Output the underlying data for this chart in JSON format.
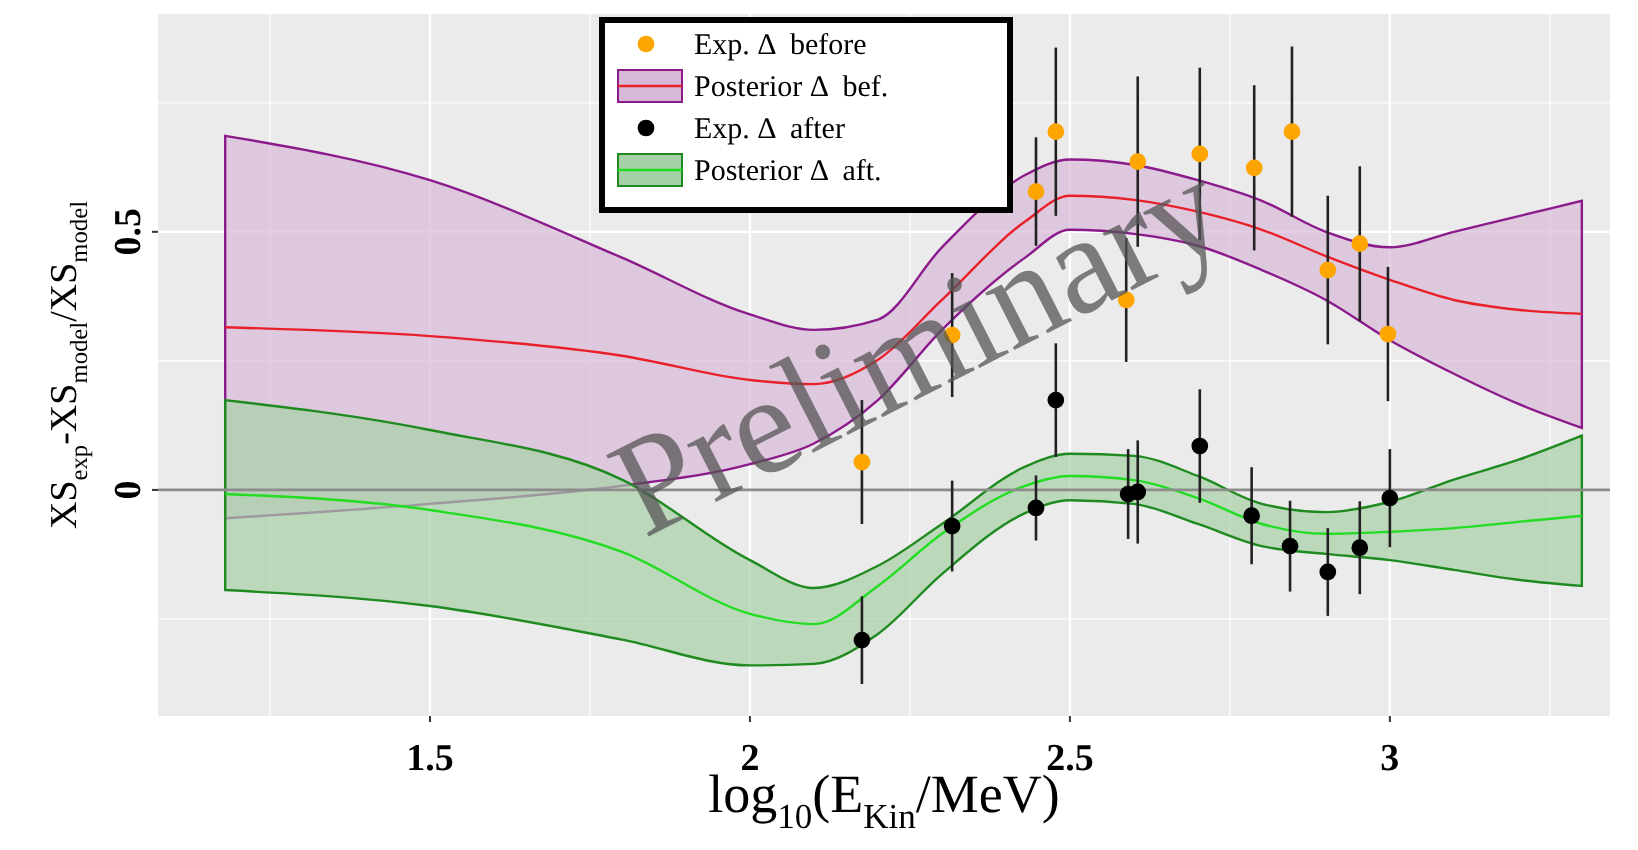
{
  "chart_data": {
    "type": "line",
    "xlabel": "log$_{10}$(E$_{Kin}$/MeV)",
    "ylabel": "XS$_{exp}$-XS$_{model}$/XS$_{model}$",
    "xlim": [
      1.075,
      3.344
    ],
    "ylim": [
      -0.438,
      0.922
    ],
    "xticks": [
      {
        "value": 1.25,
        "label": null
      },
      1.5,
      {
        "value": 1.75,
        "label": null
      },
      2,
      {
        "value": 2.25,
        "label": null
      },
      2.5,
      {
        "value": 2.75,
        "label": null
      },
      3,
      {
        "value": 3.25,
        "label": null
      }
    ],
    "yticks": [
      {
        "value": -0.25,
        "label": null
      },
      0,
      {
        "value": 0.25,
        "label": null
      },
      0.5,
      {
        "value": 0.75,
        "label": null
      }
    ],
    "grid": true,
    "legend": "top",
    "marker": "circle",
    "line_style": "solid",
    "ref_lines": [
      {
        "axis": "y",
        "value": 0,
        "label": null,
        "color": "#8c8c8c"
      }
    ],
    "annotations": [
      "Preliminary"
    ],
    "series": [
      {
        "name": "Exp. Δ  before",
        "type": "scatter",
        "color": "#ffa500",
        "x": [
          2.175,
          2.316,
          2.447,
          2.478,
          2.588,
          2.606,
          2.703,
          2.788,
          2.847,
          2.903,
          2.953,
          2.997
        ],
        "values": [
          0.054,
          0.3,
          0.578,
          0.694,
          0.368,
          0.636,
          0.651,
          0.624,
          0.694,
          0.426,
          0.477,
          0.302
        ],
        "errors": [
          0.12,
          0.12,
          0.105,
          0.163,
          0.12,
          0.165,
          0.167,
          0.16,
          0.165,
          0.144,
          0.15,
          0.13
        ]
      },
      {
        "name": "Posterior Δ  bef.",
        "marker": "none",
        "color": "#e8202a",
        "x": [
          1.18,
          1.5,
          1.8,
          2.0,
          2.1,
          2.2,
          2.3,
          2.43,
          2.5,
          2.6,
          2.7,
          2.8,
          2.9,
          3.0,
          3.1,
          3.2,
          3.3
        ],
        "values": [
          0.315,
          0.298,
          0.26,
          0.213,
          0.205,
          0.252,
          0.368,
          0.52,
          0.57,
          0.562,
          0.539,
          0.504,
          0.453,
          0.407,
          0.368,
          0.349,
          0.341
        ],
        "lower": [
          -0.055,
          -0.027,
          0.008,
          0.05,
          0.09,
          0.174,
          0.31,
          0.45,
          0.504,
          0.496,
          0.473,
          0.426,
          0.368,
          0.29,
          0.225,
          0.167,
          0.12
        ],
        "upper": [
          0.686,
          0.6,
          0.45,
          0.34,
          0.31,
          0.33,
          0.47,
          0.61,
          0.64,
          0.63,
          0.6,
          0.56,
          0.5,
          0.47,
          0.5,
          0.53,
          0.56
        ]
      },
      {
        "name": "Exp. Δ  after",
        "type": "scatter",
        "color": "#000000",
        "x": [
          2.175,
          2.316,
          2.447,
          2.478,
          2.591,
          2.606,
          2.703,
          2.784,
          2.844,
          2.903,
          2.953,
          3.0
        ],
        "values": [
          -0.291,
          -0.07,
          -0.035,
          0.174,
          -0.008,
          -0.004,
          0.085,
          -0.05,
          -0.109,
          -0.159,
          -0.112,
          -0.016
        ],
        "errors": [
          0.085,
          0.088,
          0.063,
          0.11,
          0.087,
          0.1,
          0.11,
          0.094,
          0.088,
          0.085,
          0.09,
          0.095
        ]
      },
      {
        "name": "Posterior Δ  aft.",
        "marker": "none",
        "color": "#22dd22",
        "x": [
          1.18,
          1.5,
          1.8,
          2.0,
          2.1,
          2.2,
          2.3,
          2.43,
          2.5,
          2.6,
          2.7,
          2.8,
          2.9,
          3.0,
          3.1,
          3.2,
          3.3
        ],
        "values": [
          -0.008,
          -0.039,
          -0.12,
          -0.24,
          -0.26,
          -0.186,
          -0.085,
          0.008,
          0.027,
          0.019,
          -0.016,
          -0.066,
          -0.085,
          -0.081,
          -0.074,
          -0.062,
          -0.05
        ],
        "lower": [
          -0.194,
          -0.225,
          -0.29,
          -0.34,
          -0.337,
          -0.279,
          -0.163,
          -0.045,
          -0.02,
          -0.027,
          -0.066,
          -0.109,
          -0.124,
          -0.136,
          -0.155,
          -0.174,
          -0.186
        ],
        "upper": [
          0.174,
          0.116,
          0.02,
          -0.136,
          -0.19,
          -0.147,
          -0.066,
          0.045,
          0.07,
          0.066,
          0.027,
          -0.027,
          -0.043,
          -0.023,
          0.02,
          0.058,
          0.105
        ]
      }
    ]
  }
}
